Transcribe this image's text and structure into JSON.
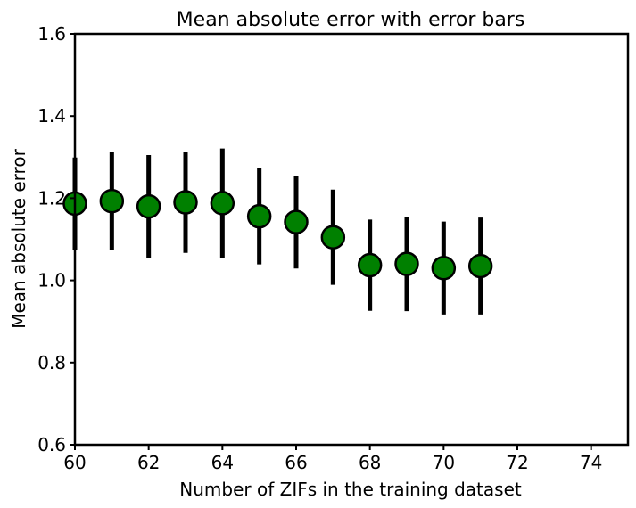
{
  "chart_data": {
    "type": "scatter",
    "title": "Mean absolute error with error bars",
    "xlabel": "Number of ZIFs in the training dataset",
    "ylabel": "Mean absolute error",
    "xlim": [
      60,
      75
    ],
    "ylim": [
      0.6,
      1.6
    ],
    "xticks": [
      60,
      62,
      64,
      66,
      68,
      70,
      72,
      74
    ],
    "xtick_labels": [
      "60",
      "62",
      "64",
      "66",
      "68",
      "70",
      "72",
      "74"
    ],
    "yticks": [
      0.6,
      0.8,
      1.0,
      1.2,
      1.4,
      1.6
    ],
    "ytick_labels": [
      "0.6",
      "0.8",
      "1.0",
      "1.2",
      "1.4",
      "1.6"
    ],
    "grid": false,
    "marker_color": "#008000",
    "marker_edge_color": "#000000",
    "errorbar_color": "#000000",
    "points": [
      {
        "x": 60,
        "y": 1.187,
        "err": 0.112
      },
      {
        "x": 61,
        "y": 1.193,
        "err": 0.12
      },
      {
        "x": 62,
        "y": 1.18,
        "err": 0.125
      },
      {
        "x": 63,
        "y": 1.19,
        "err": 0.123
      },
      {
        "x": 64,
        "y": 1.188,
        "err": 0.133
      },
      {
        "x": 65,
        "y": 1.156,
        "err": 0.117
      },
      {
        "x": 66,
        "y": 1.142,
        "err": 0.113
      },
      {
        "x": 67,
        "y": 1.105,
        "err": 0.116
      },
      {
        "x": 68,
        "y": 1.037,
        "err": 0.111
      },
      {
        "x": 69,
        "y": 1.04,
        "err": 0.115
      },
      {
        "x": 70,
        "y": 1.03,
        "err": 0.113
      },
      {
        "x": 71,
        "y": 1.035,
        "err": 0.118
      }
    ]
  }
}
